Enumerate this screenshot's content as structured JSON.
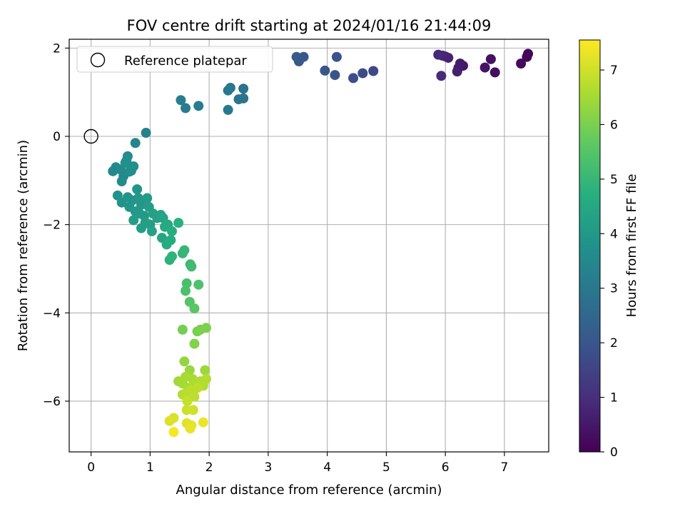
{
  "chart_data": {
    "type": "scatter",
    "title": "FOV centre drift starting at 2024/01/16 21:44:09",
    "xlabel": "Angular distance from reference (arcmin)",
    "ylabel": "Rotation from reference (arcmin)",
    "xlim": [
      -0.37,
      7.75
    ],
    "ylim": [
      -7.15,
      2.2
    ],
    "xticks": [
      0,
      1,
      2,
      3,
      4,
      5,
      6,
      7
    ],
    "yticks": [
      -6,
      -4,
      -2,
      0,
      2
    ],
    "grid": true,
    "legend": {
      "position": "top-left",
      "entries": [
        "Reference platepar"
      ]
    },
    "reference_point": {
      "x": 0,
      "y": 0,
      "label": "Reference platepar"
    },
    "colorbar": {
      "label": "Hours from first FF file",
      "colormap": "viridis",
      "range": [
        0,
        7.55
      ],
      "ticks": [
        0,
        1,
        2,
        3,
        4,
        5,
        6,
        7
      ]
    },
    "series": [
      {
        "points": [
          {
            "x": 7.4,
            "y": 1.87,
            "t": 0.1
          },
          {
            "x": 7.38,
            "y": 1.8,
            "t": 0.15
          },
          {
            "x": 7.28,
            "y": 1.65,
            "t": 0.2
          },
          {
            "x": 6.84,
            "y": 1.45,
            "t": 0.3
          },
          {
            "x": 6.77,
            "y": 1.75,
            "t": 0.35
          },
          {
            "x": 6.67,
            "y": 1.56,
            "t": 0.4
          },
          {
            "x": 6.3,
            "y": 1.6,
            "t": 0.5
          },
          {
            "x": 6.25,
            "y": 1.65,
            "t": 0.55
          },
          {
            "x": 6.22,
            "y": 1.55,
            "t": 0.6
          },
          {
            "x": 6.2,
            "y": 1.47,
            "t": 0.65
          },
          {
            "x": 6.05,
            "y": 1.78,
            "t": 0.7
          },
          {
            "x": 6.0,
            "y": 1.81,
            "t": 0.75
          },
          {
            "x": 5.95,
            "y": 1.83,
            "t": 0.8
          },
          {
            "x": 5.88,
            "y": 1.85,
            "t": 0.85
          },
          {
            "x": 5.93,
            "y": 1.37,
            "t": 0.9
          },
          {
            "x": 4.78,
            "y": 1.48,
            "t": 1.6
          },
          {
            "x": 4.6,
            "y": 1.43,
            "t": 1.7
          },
          {
            "x": 4.44,
            "y": 1.32,
            "t": 1.8
          },
          {
            "x": 4.16,
            "y": 1.8,
            "t": 1.9
          },
          {
            "x": 4.13,
            "y": 1.39,
            "t": 1.95
          },
          {
            "x": 3.96,
            "y": 1.49,
            "t": 2.0
          },
          {
            "x": 3.6,
            "y": 1.8,
            "t": 2.05
          },
          {
            "x": 3.52,
            "y": 1.7,
            "t": 2.1
          },
          {
            "x": 3.48,
            "y": 1.8,
            "t": 2.12
          },
          {
            "x": 2.58,
            "y": 1.08,
            "t": 2.8
          },
          {
            "x": 2.58,
            "y": 0.86,
            "t": 2.85
          },
          {
            "x": 2.5,
            "y": 0.84,
            "t": 2.9
          },
          {
            "x": 2.36,
            "y": 1.1,
            "t": 2.95
          },
          {
            "x": 2.32,
            "y": 1.04,
            "t": 3.0
          },
          {
            "x": 2.32,
            "y": 0.6,
            "t": 3.05
          },
          {
            "x": 1.82,
            "y": 0.69,
            "t": 3.1
          },
          {
            "x": 1.6,
            "y": 0.64,
            "t": 3.15
          },
          {
            "x": 1.52,
            "y": 0.82,
            "t": 3.2
          },
          {
            "x": 0.93,
            "y": 0.08,
            "t": 3.3
          },
          {
            "x": 0.75,
            "y": -0.15,
            "t": 3.4
          },
          {
            "x": 0.37,
            "y": -0.79,
            "t": 3.5
          },
          {
            "x": 0.42,
            "y": -0.7,
            "t": 3.52
          },
          {
            "x": 0.5,
            "y": -0.75,
            "t": 3.55
          },
          {
            "x": 0.55,
            "y": -0.9,
            "t": 3.57
          },
          {
            "x": 0.52,
            "y": -1.02,
            "t": 3.6
          },
          {
            "x": 0.6,
            "y": -0.55,
            "t": 3.62
          },
          {
            "x": 0.62,
            "y": -0.45,
            "t": 3.65
          },
          {
            "x": 0.65,
            "y": -0.8,
            "t": 3.67
          },
          {
            "x": 0.72,
            "y": -0.68,
            "t": 3.7
          },
          {
            "x": 0.58,
            "y": -0.6,
            "t": 3.72
          },
          {
            "x": 0.68,
            "y": -0.78,
            "t": 3.75
          },
          {
            "x": 0.45,
            "y": -1.34,
            "t": 3.8
          },
          {
            "x": 0.52,
            "y": -1.5,
            "t": 3.85
          },
          {
            "x": 0.62,
            "y": -1.38,
            "t": 3.88
          },
          {
            "x": 0.65,
            "y": -1.6,
            "t": 3.9
          },
          {
            "x": 0.7,
            "y": -1.45,
            "t": 3.92
          },
          {
            "x": 0.78,
            "y": -1.2,
            "t": 3.95
          },
          {
            "x": 0.8,
            "y": -1.4,
            "t": 3.97
          },
          {
            "x": 0.85,
            "y": -1.55,
            "t": 4.0
          },
          {
            "x": 0.75,
            "y": -1.7,
            "t": 4.02
          },
          {
            "x": 0.82,
            "y": -1.75,
            "t": 4.05
          },
          {
            "x": 0.9,
            "y": -1.8,
            "t": 4.07
          },
          {
            "x": 0.95,
            "y": -1.4,
            "t": 4.1
          },
          {
            "x": 0.98,
            "y": -1.6,
            "t": 4.12
          },
          {
            "x": 0.72,
            "y": -1.9,
            "t": 4.15
          },
          {
            "x": 0.85,
            "y": -2.08,
            "t": 4.17
          },
          {
            "x": 0.92,
            "y": -1.95,
            "t": 4.2
          },
          {
            "x": 1.0,
            "y": -2.0,
            "t": 4.22
          },
          {
            "x": 1.05,
            "y": -1.75,
            "t": 4.25
          },
          {
            "x": 1.03,
            "y": -2.15,
            "t": 4.28
          },
          {
            "x": 1.12,
            "y": -1.85,
            "t": 4.3
          },
          {
            "x": 1.18,
            "y": -1.78,
            "t": 4.35
          },
          {
            "x": 1.22,
            "y": -1.85,
            "t": 4.4
          },
          {
            "x": 1.2,
            "y": -2.3,
            "t": 4.45
          },
          {
            "x": 1.25,
            "y": -2.05,
            "t": 4.5
          },
          {
            "x": 1.3,
            "y": -2.0,
            "t": 4.55
          },
          {
            "x": 1.28,
            "y": -2.45,
            "t": 4.6
          },
          {
            "x": 1.35,
            "y": -2.35,
            "t": 4.65
          },
          {
            "x": 1.37,
            "y": -2.15,
            "t": 4.7
          },
          {
            "x": 1.48,
            "y": -1.96,
            "t": 4.75
          },
          {
            "x": 1.33,
            "y": -2.8,
            "t": 4.8
          },
          {
            "x": 1.37,
            "y": -2.72,
            "t": 4.85
          },
          {
            "x": 1.55,
            "y": -2.65,
            "t": 4.95
          },
          {
            "x": 1.58,
            "y": -2.58,
            "t": 5.0
          },
          {
            "x": 1.68,
            "y": -2.9,
            "t": 5.1
          },
          {
            "x": 1.7,
            "y": -2.95,
            "t": 5.15
          },
          {
            "x": 1.62,
            "y": -3.33,
            "t": 5.3
          },
          {
            "x": 1.6,
            "y": -3.5,
            "t": 5.35
          },
          {
            "x": 1.82,
            "y": -3.36,
            "t": 5.4
          },
          {
            "x": 1.67,
            "y": -3.75,
            "t": 5.5
          },
          {
            "x": 1.75,
            "y": -3.9,
            "t": 5.55
          },
          {
            "x": 1.55,
            "y": -4.38,
            "t": 5.9
          },
          {
            "x": 1.8,
            "y": -4.42,
            "t": 5.95
          },
          {
            "x": 1.85,
            "y": -4.38,
            "t": 6.0
          },
          {
            "x": 1.95,
            "y": -4.34,
            "t": 6.05
          },
          {
            "x": 1.75,
            "y": -4.7,
            "t": 6.1
          },
          {
            "x": 1.58,
            "y": -5.1,
            "t": 6.3
          },
          {
            "x": 1.67,
            "y": -5.3,
            "t": 6.35
          },
          {
            "x": 1.93,
            "y": -5.3,
            "t": 6.4
          },
          {
            "x": 1.48,
            "y": -5.55,
            "t": 6.45
          },
          {
            "x": 1.55,
            "y": -5.6,
            "t": 6.5
          },
          {
            "x": 1.6,
            "y": -5.45,
            "t": 6.52
          },
          {
            "x": 1.65,
            "y": -5.7,
            "t": 6.55
          },
          {
            "x": 1.72,
            "y": -5.5,
            "t": 6.58
          },
          {
            "x": 1.78,
            "y": -5.6,
            "t": 6.6
          },
          {
            "x": 1.85,
            "y": -5.55,
            "t": 6.62
          },
          {
            "x": 1.9,
            "y": -5.65,
            "t": 6.65
          },
          {
            "x": 1.95,
            "y": -5.5,
            "t": 6.68
          },
          {
            "x": 1.55,
            "y": -5.85,
            "t": 6.7
          },
          {
            "x": 1.62,
            "y": -5.8,
            "t": 6.72
          },
          {
            "x": 1.7,
            "y": -5.75,
            "t": 6.75
          },
          {
            "x": 1.75,
            "y": -5.9,
            "t": 6.78
          },
          {
            "x": 1.8,
            "y": -5.7,
            "t": 6.8
          },
          {
            "x": 1.63,
            "y": -6.0,
            "t": 6.9
          },
          {
            "x": 1.62,
            "y": -6.2,
            "t": 6.95
          },
          {
            "x": 1.73,
            "y": -6.2,
            "t": 7.0
          },
          {
            "x": 1.4,
            "y": -6.38,
            "t": 7.1
          },
          {
            "x": 1.33,
            "y": -6.45,
            "t": 7.15
          },
          {
            "x": 1.62,
            "y": -6.5,
            "t": 7.2
          },
          {
            "x": 1.7,
            "y": -6.55,
            "t": 7.25
          },
          {
            "x": 1.68,
            "y": -6.62,
            "t": 7.3
          },
          {
            "x": 1.9,
            "y": -6.48,
            "t": 7.35
          },
          {
            "x": 1.4,
            "y": -6.7,
            "t": 7.5
          }
        ]
      }
    ]
  }
}
